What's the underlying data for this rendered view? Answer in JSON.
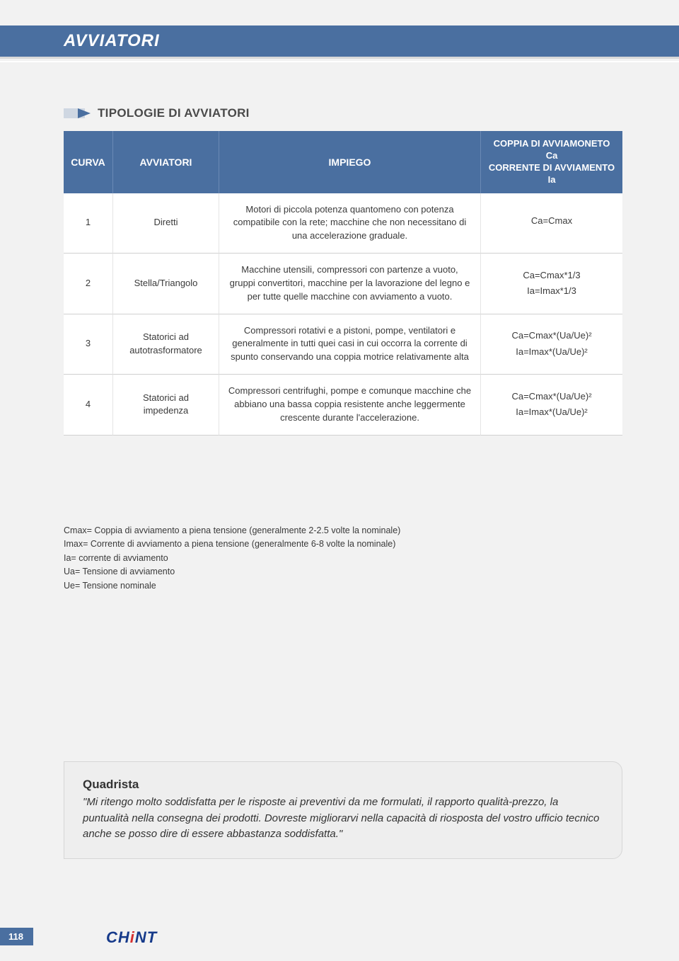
{
  "header": {
    "title": "AVVIATORI"
  },
  "section": {
    "title": "TIPOLOGIE DI AVVIATORI"
  },
  "table": {
    "headers": {
      "curva": "CURVA",
      "avviatori": "AVVIATORI",
      "impiego": "IMPIEGO",
      "coppia": "COPPIA DI AVVIAMONETO Ca\nCORRENTE DI AVVIAMENTO Ia"
    },
    "rows": [
      {
        "curva": "1",
        "avviatori": "Diretti",
        "impiego": "Motori di piccola potenza quantomeno con potenza compatibile con la rete; macchine che non necessitano di una accelerazione graduale.",
        "formula1": "Ca=Cmax",
        "formula2": ""
      },
      {
        "curva": "2",
        "avviatori": "Stella/Triangolo",
        "impiego": "Macchine utensili, compressori con partenze a vuoto, gruppi convertitori, macchine per la lavorazione del legno e per tutte quelle macchine con avviamento a vuoto.",
        "formula1": "Ca=Cmax*1/3",
        "formula2": "Ia=Imax*1/3"
      },
      {
        "curva": "3",
        "avviatori": "Statorici ad autotrasformatore",
        "impiego": "Compressori rotativi e a pistoni, pompe, ventilatori e generalmente in tutti quei casi in cui occorra la corrente di spunto conservando una coppia motrice relativamente alta",
        "formula1": "Ca=Cmax*(Ua/Ue)²",
        "formula2": "Ia=Imax*(Ua/Ue)²"
      },
      {
        "curva": "4",
        "avviatori": "Statorici ad impedenza",
        "impiego": "Compressori centrifughi, pompe e comunque macchine che abbiano una bassa coppia resistente anche leggermente crescente durante l'accelerazione.",
        "formula1": "Ca=Cmax*(Ua/Ue)²",
        "formula2": "Ia=Imax*(Ua/Ue)²"
      }
    ]
  },
  "notes": {
    "l1": "Cmax= Coppia di avviamento a piena tensione (generalmente 2-2.5 volte la nominale)",
    "l2": "Imax= Corrente di avviamento a piena tensione (generalmente 6-8 volte la nominale)",
    "l3": "Ia= corrente di avviamento",
    "l4": "Ua= Tensione di avviamento",
    "l5": "Ue= Tensione nominale"
  },
  "quote": {
    "title": "Quadrista",
    "text": "\"Mi ritengo molto soddisfatta per le risposte ai preventivi da me formulati, il rapporto qualità-prezzo, la puntualità nella consegna dei prodotti. Dovreste migliorarvi nella capacità di riosposta del vostro ufficio tecnico anche se posso dire di essere abbastanza soddisfatta.\""
  },
  "footer": {
    "page_number": "118",
    "logo_1": "CH",
    "logo_accent": "i",
    "logo_2": "NT"
  },
  "colors": {
    "brand_blue": "#4a6fa0",
    "page_bg": "#f2f2f2",
    "cell_bg": "#ffffff",
    "border": "#d0d0d0",
    "logo_blue": "#163a8a",
    "logo_red": "#d62f2f"
  }
}
